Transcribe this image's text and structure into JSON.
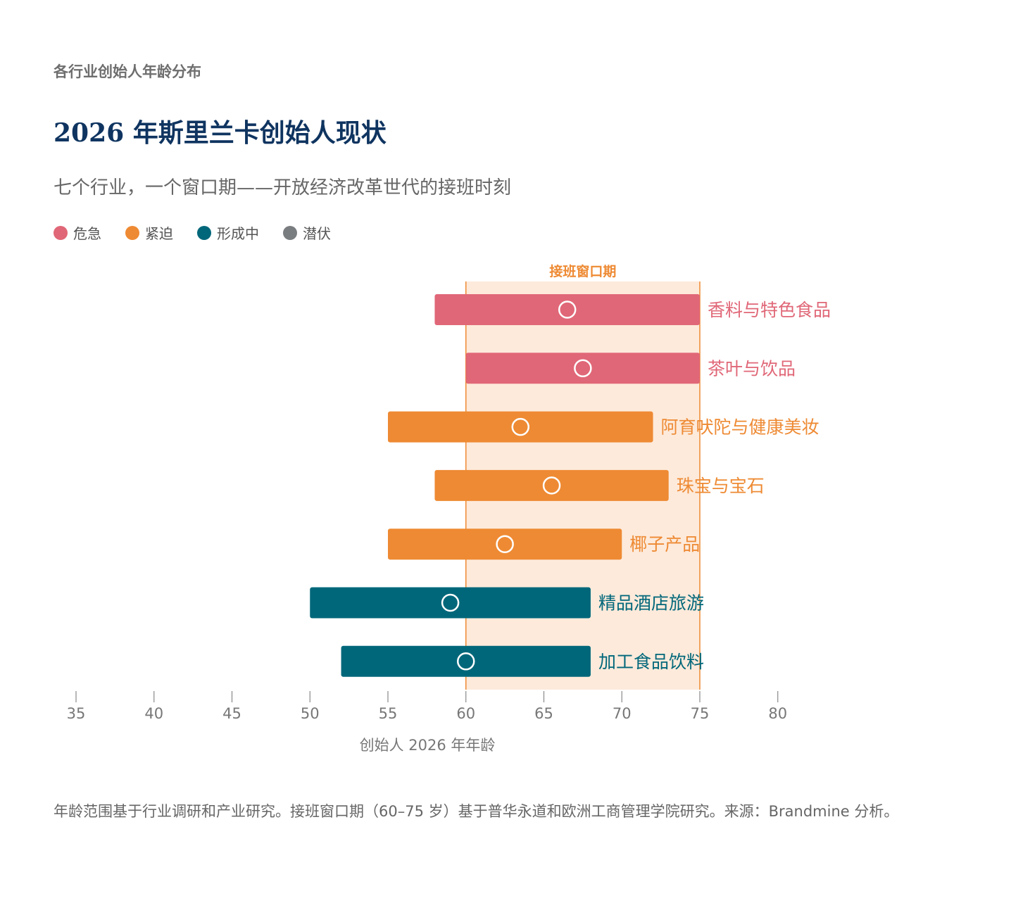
{
  "eyebrow": "各行业创始人年龄分布",
  "title": "2026 年斯里兰卡创始人现状",
  "subtitle": "七个行业，一个窗口期——开放经济改革世代的接班时刻",
  "legend": [
    {
      "label": "危急",
      "color": "#E06777"
    },
    {
      "label": "紧迫",
      "color": "#EE8A33"
    },
    {
      "label": "形成中",
      "color": "#00677A"
    },
    {
      "label": "潜伏",
      "color": "#7A7D80"
    }
  ],
  "chart_data": {
    "type": "range-bar",
    "x_axis": {
      "label": "创始人 2026 年年龄",
      "min": 35,
      "max": 80,
      "ticks": [
        35,
        40,
        45,
        50,
        55,
        60,
        65,
        70,
        75,
        80
      ]
    },
    "window": {
      "label": "接班窗口期",
      "from": 60,
      "to": 75
    },
    "series": [
      {
        "name": "香料与特色食品",
        "min": 58,
        "max": 75,
        "median": 66.5,
        "status": "危急",
        "color": "#E06777"
      },
      {
        "name": "茶叶与饮品",
        "min": 60,
        "max": 75,
        "median": 67.5,
        "status": "危急",
        "color": "#E06777"
      },
      {
        "name": "阿育吠陀与健康美妆",
        "min": 55,
        "max": 72,
        "median": 63.5,
        "status": "紧迫",
        "color": "#EE8A33"
      },
      {
        "name": "珠宝与宝石",
        "min": 58,
        "max": 73,
        "median": 65.5,
        "status": "紧迫",
        "color": "#EE8A33"
      },
      {
        "name": "椰子产品",
        "min": 55,
        "max": 70,
        "median": 62.5,
        "status": "紧迫",
        "color": "#EE8A33"
      },
      {
        "name": "精品酒店旅游",
        "min": 50,
        "max": 68,
        "median": 59,
        "status": "形成中",
        "color": "#00677A"
      },
      {
        "name": "加工食品饮料",
        "min": 52,
        "max": 68,
        "median": 60,
        "status": "形成中",
        "color": "#00677A"
      }
    ]
  },
  "footnote": "年龄范围基于行业调研和产业研究。接班窗口期（60–75 岁）基于普华永道和欧洲工商管理学院研究。来源：Brandmine 分析。",
  "colors": {
    "window_fill": "#FDEADB",
    "window_line": "#EE8A33",
    "axis": "#888888"
  }
}
